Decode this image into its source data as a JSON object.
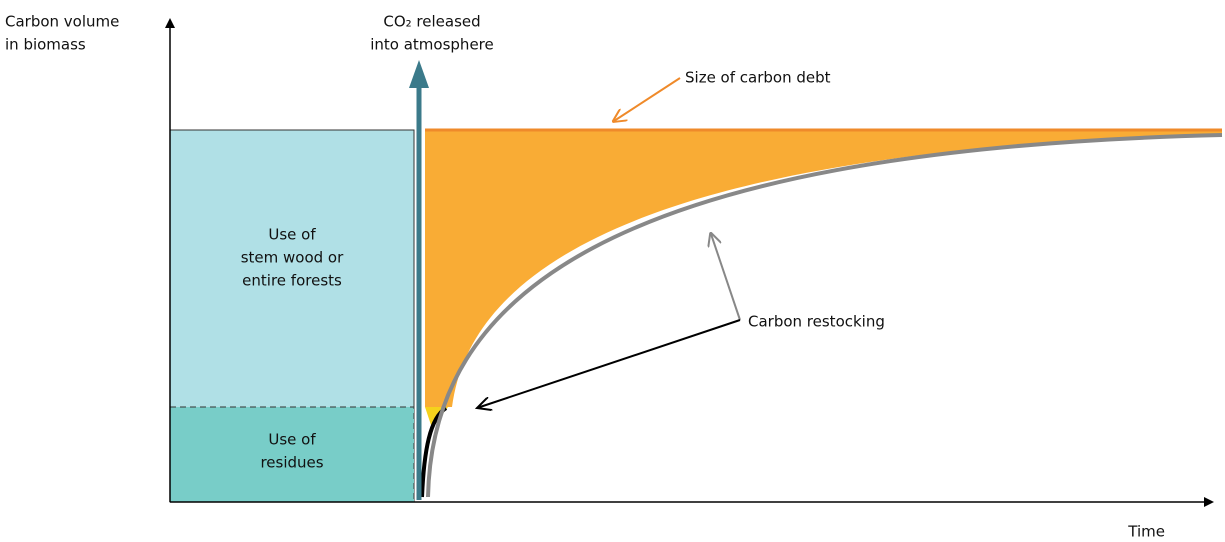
{
  "y_axis_label": [
    "Carbon volume",
    "in biomass"
  ],
  "x_axis_label": "Time",
  "release_label": [
    "CO₂ released",
    "into atmosphere"
  ],
  "debt_label": "Size of carbon debt",
  "stem_label": [
    "Use of",
    "stem wood or",
    "entire forests"
  ],
  "residue_label": [
    "Use of",
    "residues"
  ],
  "restocking_label": "Carbon restocking"
}
